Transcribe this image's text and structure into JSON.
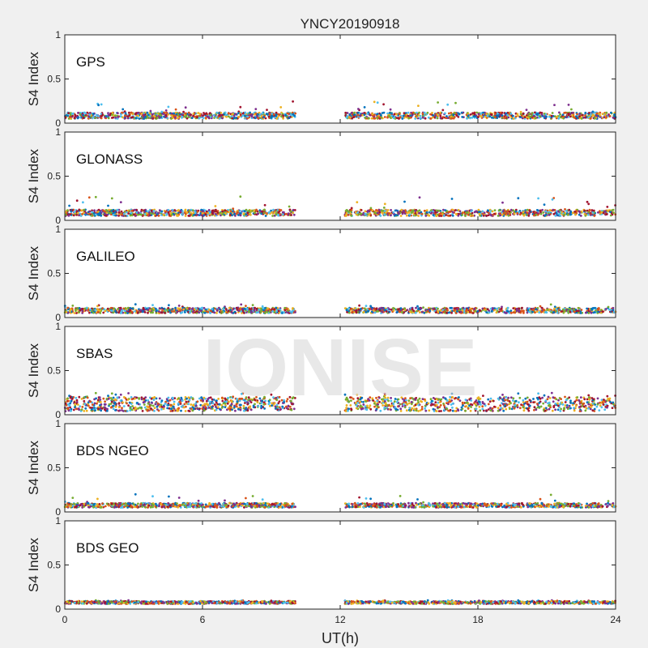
{
  "title": "YNCY20190918",
  "watermark": "IONISE",
  "chart_data": {
    "type": "scatter",
    "title": "YNCY20190918",
    "xlabel": "UT(h)",
    "ylabel": "S4 Index",
    "xlim": [
      0,
      24
    ],
    "ylim": [
      0,
      1
    ],
    "x_ticks": [
      "0",
      "6",
      "12",
      "18",
      "24"
    ],
    "y_ticks": [
      "0",
      "0.5",
      "1"
    ],
    "data_gap_hours": [
      10.05,
      12.2
    ],
    "grid": false,
    "series_colors": [
      "#0072bd",
      "#d95319",
      "#edb120",
      "#7e2f8e",
      "#77ac30",
      "#4dbeee",
      "#a2142f"
    ],
    "panels": [
      {
        "label": "GPS",
        "base_s4": [
          0.05,
          0.12
        ],
        "spike_max": 0.25
      },
      {
        "label": "GLONASS",
        "base_s4": [
          0.05,
          0.12
        ],
        "spike_max": 0.28
      },
      {
        "label": "GALILEO",
        "base_s4": [
          0.05,
          0.11
        ],
        "spike_max": 0.15
      },
      {
        "label": "SBAS",
        "base_s4": [
          0.04,
          0.2
        ],
        "spike_max": 0.25
      },
      {
        "label": "BDS NGEO",
        "base_s4": [
          0.05,
          0.1
        ],
        "spike_max": 0.2
      },
      {
        "label": "BDS GEO",
        "base_s4": [
          0.06,
          0.09
        ],
        "spike_max": 0.1
      }
    ]
  }
}
